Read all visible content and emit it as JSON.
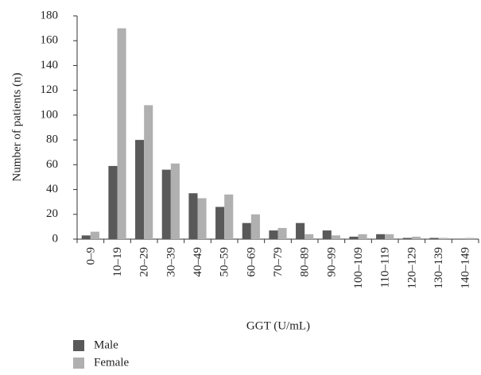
{
  "chart_data": {
    "type": "bar",
    "y_label": "Number of patients (n)",
    "x_label": "GGT (U/mL)",
    "categories": [
      "0–9",
      "10–19",
      "20–29",
      "30–39",
      "40–49",
      "50–59",
      "60–69",
      "70–79",
      "80–89",
      "90–99",
      "100–109",
      "110–119",
      "120–129",
      "130–139",
      "140–149"
    ],
    "series": [
      {
        "name": "Male",
        "color": "#595959",
        "values": [
          3,
          59,
          80,
          56,
          37,
          26,
          13,
          7,
          13,
          7,
          2,
          4,
          1,
          1,
          0
        ]
      },
      {
        "name": "Female",
        "color": "#b0b0b0",
        "values": [
          6,
          170,
          108,
          61,
          33,
          36,
          20,
          9,
          4,
          3,
          4,
          4,
          2,
          1,
          1
        ]
      }
    ],
    "ylim": [
      0,
      180
    ],
    "yticks": [
      0,
      20,
      40,
      60,
      80,
      100,
      120,
      140,
      160,
      180
    ],
    "grid": false
  }
}
